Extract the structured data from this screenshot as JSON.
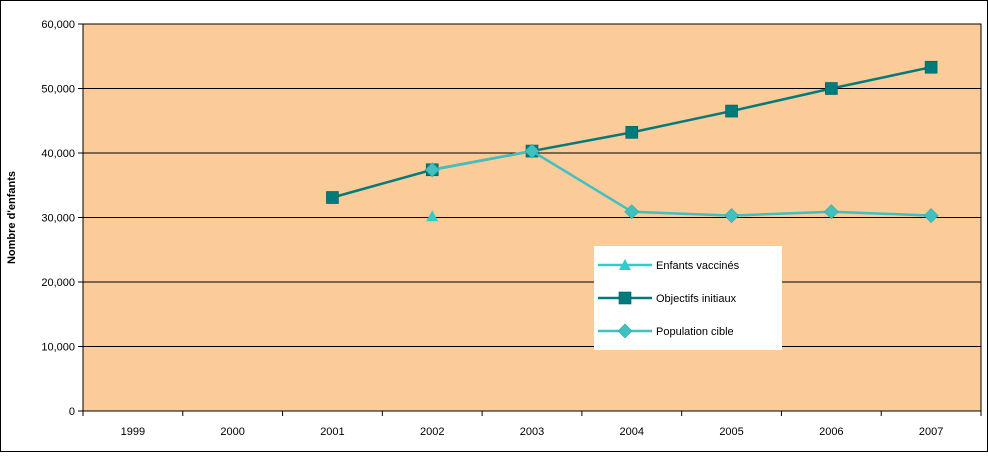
{
  "chart_data": {
    "type": "line",
    "ylabel": "Nombre d'enfants",
    "categories": [
      "1999",
      "2000",
      "2001",
      "2002",
      "2003",
      "2004",
      "2005",
      "2006",
      "2007"
    ],
    "ylim": [
      0,
      60000
    ],
    "yticks": [
      0,
      10000,
      20000,
      30000,
      40000,
      50000,
      60000
    ],
    "ytick_labels": [
      "0",
      "10,000",
      "20,000",
      "30,000",
      "40,000",
      "50,000",
      "60,000"
    ],
    "grid": true,
    "plot_background": "#FBCB9A",
    "series": [
      {
        "name": "Enfants vaccinés",
        "marker": "triangle",
        "color": "#33CCCC",
        "values": [
          null,
          null,
          null,
          30200,
          null,
          null,
          null,
          null,
          null
        ]
      },
      {
        "name": "Objectifs initiaux",
        "marker": "square",
        "color": "#007B7B",
        "values": [
          null,
          null,
          33100,
          37400,
          40300,
          43200,
          46500,
          50000,
          53300
        ]
      },
      {
        "name": "Population cible",
        "marker": "diamond",
        "color": "#40C0C0",
        "values": [
          null,
          null,
          null,
          37400,
          40300,
          30900,
          30300,
          30900,
          30300
        ]
      }
    ],
    "legend_position": "inside-right"
  }
}
